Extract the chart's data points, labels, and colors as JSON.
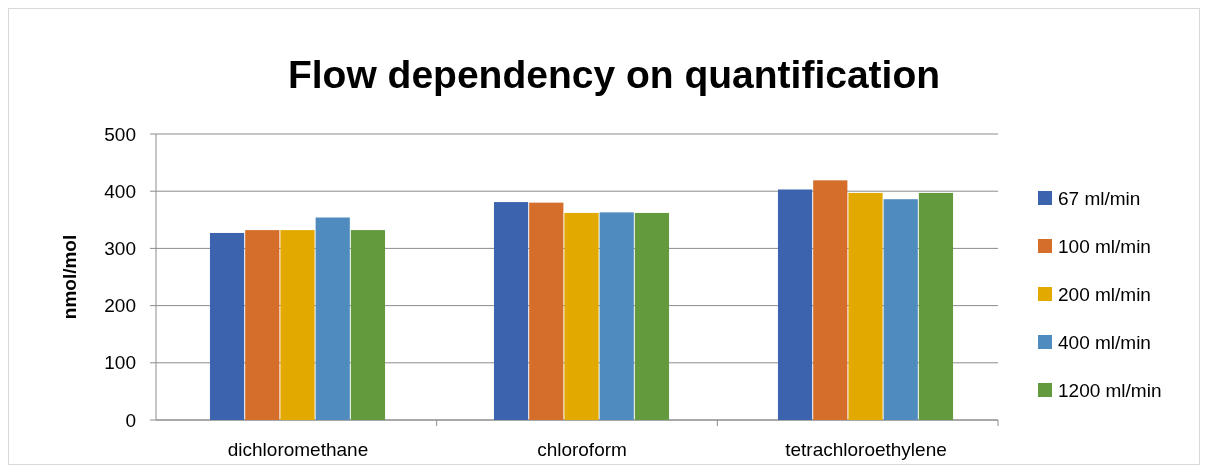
{
  "chart_data": {
    "type": "bar",
    "title": "Flow dependency on quantification",
    "ylabel": "nmol/mol",
    "categories": [
      "dichloromethane",
      "chloroform",
      "tetrachloroethylene"
    ],
    "series": [
      {
        "name": "67 ml/min",
        "color": "#3c64ae",
        "values": [
          327,
          381,
          403
        ]
      },
      {
        "name": "100 ml/min",
        "color": "#d46e2a",
        "values": [
          332,
          380,
          419
        ]
      },
      {
        "name": "200 ml/min",
        "color": "#e2a900",
        "values": [
          332,
          362,
          397
        ]
      },
      {
        "name": "400 ml/min",
        "color": "#4f8bbf",
        "values": [
          354,
          363,
          386
        ]
      },
      {
        "name": "1200 ml/min",
        "color": "#629a3d",
        "values": [
          332,
          362,
          397
        ]
      }
    ],
    "ylim": [
      0,
      500
    ],
    "yticks": [
      0,
      100,
      200,
      300,
      400,
      500
    ],
    "grid": "y",
    "legend": "right"
  }
}
